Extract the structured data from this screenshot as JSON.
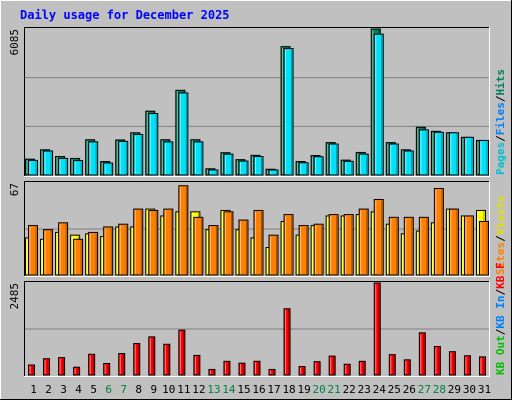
{
  "chart_data": {
    "type": "bar",
    "title": "Daily usage for December 2025",
    "categories": [
      "1",
      "2",
      "3",
      "4",
      "5",
      "6",
      "7",
      "8",
      "9",
      "10",
      "11",
      "12",
      "13",
      "14",
      "15",
      "16",
      "17",
      "18",
      "19",
      "20",
      "21",
      "22",
      "23",
      "24",
      "25",
      "26",
      "27",
      "28",
      "29",
      "30",
      "31"
    ],
    "weekend_days": [
      "6",
      "7",
      "13",
      "14",
      "20",
      "21",
      "27",
      "28"
    ],
    "panels": [
      {
        "id": "hits",
        "ymax_label": "6085",
        "ymax": 6085,
        "legend": [
          {
            "text": "Hits",
            "color": "#00805c"
          },
          {
            "text": "/",
            "color": "#000000"
          },
          {
            "text": "Files",
            "color": "#0080ff"
          },
          {
            "text": "/",
            "color": "#000000"
          },
          {
            "text": "Pages",
            "color": "#00c0d0"
          }
        ],
        "series": [
          {
            "name": "Hits",
            "color": "#00805c",
            "values": [
              660,
              1050,
              770,
              690,
              1470,
              560,
              1460,
              1760,
              2660,
              1470,
              3530,
              1470,
              260,
              930,
              640,
              820,
              240,
              5350,
              560,
              810,
              1350,
              620,
              940,
              6085,
              1350,
              1050,
              1990,
              1820,
              1760,
              1570,
              1440
            ]
          },
          {
            "name": "Files",
            "color": "#00e0f8",
            "values": [
              610,
              1000,
              690,
              600,
              1380,
              500,
              1400,
              1690,
              2560,
              1380,
              3420,
              1380,
              210,
              870,
              580,
              770,
              210,
              5270,
              510,
              760,
              1290,
              570,
              870,
              5870,
              1290,
              1000,
              1880,
              1780,
              1760,
              1570,
              1440
            ]
          }
        ]
      },
      {
        "id": "visits",
        "ymax_label": "67",
        "ymax": 67,
        "legend": [
          {
            "text": "Visits",
            "color": "#e0e000"
          },
          {
            "text": "/",
            "color": "#000000"
          },
          {
            "text": "Sites",
            "color": "#ff8000"
          }
        ],
        "series": [
          {
            "name": "Visits",
            "color": "#ffff00",
            "values": [
              27,
              26,
              31,
              29,
              30,
              28,
              35,
              35,
              48,
              43,
              46,
              46,
              33,
              47,
              33,
              27,
              20,
              39,
              29,
              36,
              43,
              43,
              44,
              46,
              37,
              30,
              32,
              38,
              48,
              43,
              47
            ]
          },
          {
            "name": "Sites",
            "color": "#ff8000",
            "values": [
              36,
              33,
              38,
              26,
              31,
              35,
              37,
              48,
              47,
              48,
              65,
              42,
              36,
              46,
              40,
              47,
              29,
              44,
              36,
              37,
              44,
              44,
              48,
              55,
              42,
              42,
              42,
              63,
              48,
              43,
              39
            ]
          }
        ]
      },
      {
        "id": "kbytes",
        "ymax_label": "2485",
        "ymax": 2485,
        "legend": [
          {
            "text": "KB F",
            "color": "#ff0000"
          },
          {
            "text": "/",
            "color": "#000000"
          },
          {
            "text": "KB In",
            "color": "#0080ff"
          },
          {
            "text": "/",
            "color": "#000000"
          },
          {
            "text": "KB Out",
            "color": "#00c000"
          }
        ],
        "series": [
          {
            "name": "KB F",
            "color": "#ff0000",
            "values": [
              270,
              440,
              470,
              210,
              560,
              310,
              580,
              850,
              1030,
              830,
              1210,
              530,
              150,
              370,
              320,
              370,
              150,
              1790,
              230,
              360,
              510,
              290,
              370,
              2485,
              550,
              410,
              1140,
              770,
              630,
              520,
              490
            ]
          }
        ]
      }
    ]
  }
}
